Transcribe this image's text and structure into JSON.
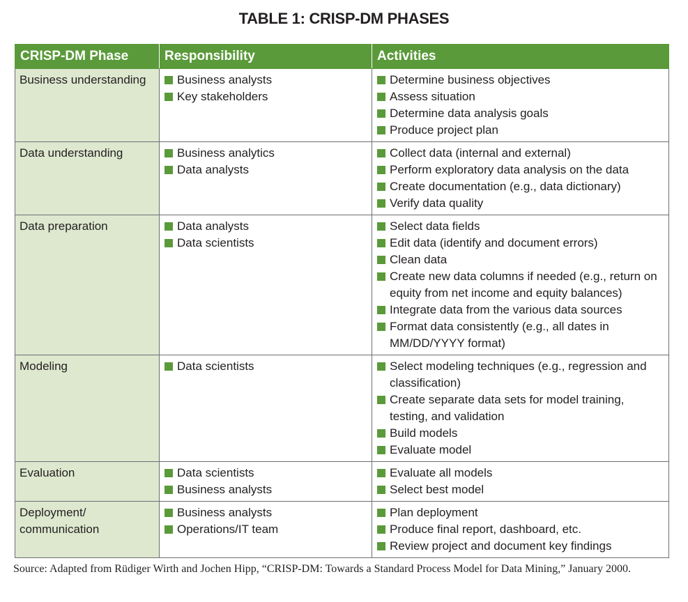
{
  "title": "TABLE 1: CRISP-DM PHASES",
  "headers": {
    "phase": "CRISP-DM Phase",
    "responsibility": "Responsibility",
    "activities": "Activities"
  },
  "colors": {
    "header_bg": "#5a9a3a",
    "phase_bg": "#dde8cf",
    "bullet": "#5a9a3a"
  },
  "bullet_icon": "green-square",
  "rows": [
    {
      "phase": "Business understanding",
      "responsibility": [
        "Business analysts",
        "Key stakeholders"
      ],
      "activities": [
        "Determine business objectives",
        "Assess situation",
        "Determine data analysis goals",
        "Produce project plan"
      ]
    },
    {
      "phase": "Data understanding",
      "responsibility": [
        "Business analytics",
        "Data analysts"
      ],
      "activities": [
        "Collect data (internal and external)",
        "Perform exploratory data analysis on the data",
        "Create documentation (e.g., data dictionary)",
        "Verify data quality"
      ]
    },
    {
      "phase": "Data preparation",
      "responsibility": [
        "Data analysts",
        "Data scientists"
      ],
      "activities": [
        "Select data fields",
        "Edit data (identify and document errors)",
        "Clean data",
        "Create new data columns if needed (e.g., return on equity from net income and equity balances)",
        "Integrate data from the various data sources",
        "Format data consistently (e.g., all dates in MM/DD/YYYY format)"
      ]
    },
    {
      "phase": "Modeling",
      "responsibility": [
        "Data scientists"
      ],
      "activities": [
        "Select modeling techniques (e.g., regression and classification)",
        "Create separate data sets for model training, testing, and validation",
        "Build models",
        "Evaluate model"
      ]
    },
    {
      "phase": "Evaluation",
      "responsibility": [
        "Data scientists",
        "Business analysts"
      ],
      "activities": [
        "Evaluate all models",
        "Select best model"
      ]
    },
    {
      "phase": "Deployment/ communication",
      "responsibility": [
        "Business analysts",
        "Operations/IT team"
      ],
      "activities": [
        "Plan deployment",
        "Produce final report, dashboard, etc.",
        "Review project and document key findings"
      ]
    }
  ],
  "source": "Source: Adapted from Rüdiger Wirth and Jochen Hipp, “CRISP-DM: Towards a Standard Process Model for Data Mining,” January 2000."
}
